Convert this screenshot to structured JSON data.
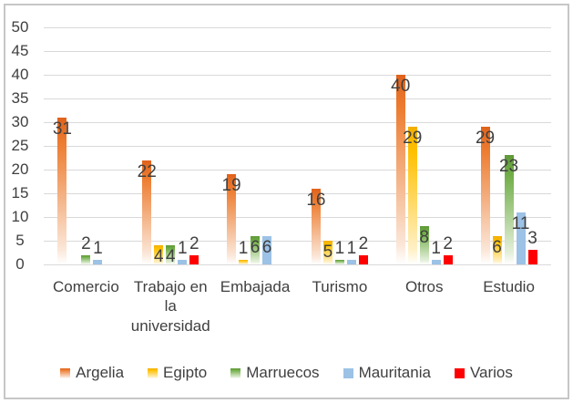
{
  "chart_data": {
    "type": "bar",
    "title": "",
    "categories": [
      "Comercio",
      "Trabajo en la universidad",
      "Embajada",
      "Turismo",
      "Otros",
      "Estudio"
    ],
    "series": [
      {
        "name": "Argelia",
        "fill": "gradient",
        "color_top": "#e0621c",
        "color": "#ed7d31",
        "fade": "#fbe7d9",
        "values": [
          31,
          22,
          19,
          16,
          40,
          29
        ]
      },
      {
        "name": "Egipto",
        "fill": "gradient",
        "color_top": "#f2ae00",
        "color": "#ffc000",
        "fade": "#fff1c9",
        "values": [
          0,
          4,
          1,
          5,
          29,
          6
        ]
      },
      {
        "name": "Marruecos",
        "fill": "gradient",
        "color_top": "#5f9938",
        "color": "#70ad47",
        "fade": "#e5f0dc",
        "values": [
          2,
          4,
          6,
          1,
          8,
          23
        ]
      },
      {
        "name": "Mauritania",
        "fill": "solid",
        "color": "#9cc2e6",
        "values": [
          1,
          1,
          6,
          1,
          1,
          11
        ]
      },
      {
        "name": "Varios",
        "fill": "solid",
        "color": "#fe0000",
        "values": [
          0,
          2,
          0,
          2,
          2,
          3
        ]
      }
    ],
    "y_axis": {
      "min": 0,
      "max": 50,
      "step": 5,
      "ticks": [
        "0",
        "5",
        "10",
        "15",
        "20",
        "25",
        "30",
        "35",
        "40",
        "45",
        "50"
      ]
    },
    "grid": true,
    "data_labels": true,
    "legend_position": "bottom",
    "text_color": "#404040",
    "gridline_color": "#d9d9d9",
    "border_color": "#c6c6c6",
    "background_color": "#ffffff"
  }
}
